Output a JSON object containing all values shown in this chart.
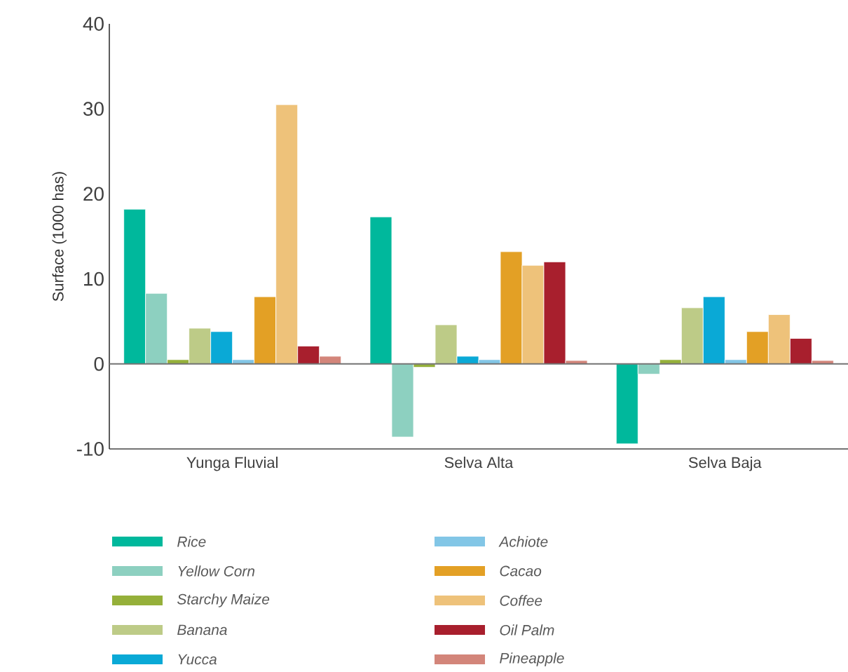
{
  "chart_data": {
    "type": "bar",
    "ylabel": "Surface (1000 has)",
    "categories": [
      "Yunga Fluvial",
      "Selva Alta",
      "Selva Baja"
    ],
    "series": [
      {
        "name": "Rice",
        "color": "#00b89c",
        "values": [
          18.2,
          17.3,
          -9.4
        ]
      },
      {
        "name": "Yellow Corn",
        "color": "#8dd0c0",
        "values": [
          8.3,
          -8.6,
          -1.2
        ]
      },
      {
        "name": "Starchy Maize",
        "color": "#95b03a",
        "values": [
          0.5,
          -0.4,
          0.5
        ]
      },
      {
        "name": "Banana",
        "color": "#bdcb87",
        "values": [
          4.2,
          4.6,
          6.6
        ]
      },
      {
        "name": "Yucca",
        "color": "#0aa9d6",
        "values": [
          3.8,
          0.9,
          7.9
        ]
      },
      {
        "name": "Achiote",
        "color": "#82c6e6",
        "values": [
          0.5,
          0.5,
          0.5
        ]
      },
      {
        "name": "Cacao",
        "color": "#e3a025",
        "values": [
          7.9,
          13.2,
          3.8
        ]
      },
      {
        "name": "Coffee",
        "color": "#eec27a",
        "values": [
          30.5,
          11.6,
          5.8
        ]
      },
      {
        "name": "Oil Palm",
        "color": "#a81f2d",
        "values": [
          2.1,
          12.0,
          3.0
        ]
      },
      {
        "name": "Pineapple",
        "color": "#d3857a",
        "values": [
          0.9,
          0.4,
          0.4
        ]
      }
    ],
    "ylim": [
      -10,
      40
    ],
    "yticks": [
      -10,
      0,
      10,
      20,
      30,
      40
    ],
    "legend": "bottom"
  }
}
